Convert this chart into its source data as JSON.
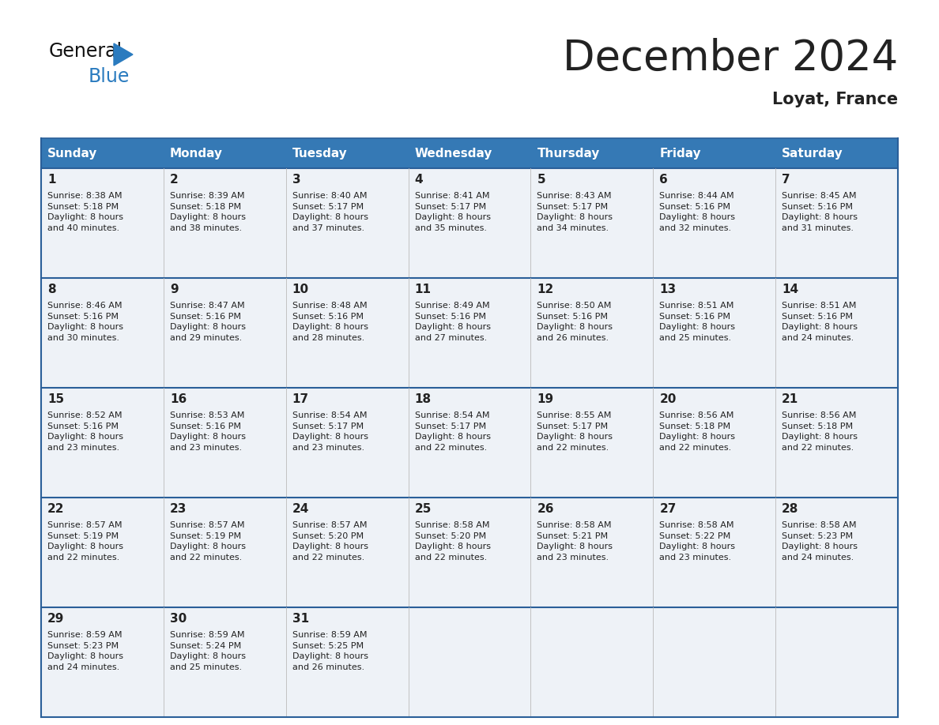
{
  "title": "December 2024",
  "subtitle": "Loyat, France",
  "header_bg": "#3579b5",
  "header_text_color": "#ffffff",
  "cell_bg_light": "#eef2f7",
  "border_color": "#2a5f99",
  "text_color": "#222222",
  "days_of_week": [
    "Sunday",
    "Monday",
    "Tuesday",
    "Wednesday",
    "Thursday",
    "Friday",
    "Saturday"
  ],
  "calendar": [
    [
      {
        "day": 1,
        "sunrise": "8:38 AM",
        "sunset": "5:18 PM",
        "daylight": "8 hours\nand 40 minutes."
      },
      {
        "day": 2,
        "sunrise": "8:39 AM",
        "sunset": "5:18 PM",
        "daylight": "8 hours\nand 38 minutes."
      },
      {
        "day": 3,
        "sunrise": "8:40 AM",
        "sunset": "5:17 PM",
        "daylight": "8 hours\nand 37 minutes."
      },
      {
        "day": 4,
        "sunrise": "8:41 AM",
        "sunset": "5:17 PM",
        "daylight": "8 hours\nand 35 minutes."
      },
      {
        "day": 5,
        "sunrise": "8:43 AM",
        "sunset": "5:17 PM",
        "daylight": "8 hours\nand 34 minutes."
      },
      {
        "day": 6,
        "sunrise": "8:44 AM",
        "sunset": "5:16 PM",
        "daylight": "8 hours\nand 32 minutes."
      },
      {
        "day": 7,
        "sunrise": "8:45 AM",
        "sunset": "5:16 PM",
        "daylight": "8 hours\nand 31 minutes."
      }
    ],
    [
      {
        "day": 8,
        "sunrise": "8:46 AM",
        "sunset": "5:16 PM",
        "daylight": "8 hours\nand 30 minutes."
      },
      {
        "day": 9,
        "sunrise": "8:47 AM",
        "sunset": "5:16 PM",
        "daylight": "8 hours\nand 29 minutes."
      },
      {
        "day": 10,
        "sunrise": "8:48 AM",
        "sunset": "5:16 PM",
        "daylight": "8 hours\nand 28 minutes."
      },
      {
        "day": 11,
        "sunrise": "8:49 AM",
        "sunset": "5:16 PM",
        "daylight": "8 hours\nand 27 minutes."
      },
      {
        "day": 12,
        "sunrise": "8:50 AM",
        "sunset": "5:16 PM",
        "daylight": "8 hours\nand 26 minutes."
      },
      {
        "day": 13,
        "sunrise": "8:51 AM",
        "sunset": "5:16 PM",
        "daylight": "8 hours\nand 25 minutes."
      },
      {
        "day": 14,
        "sunrise": "8:51 AM",
        "sunset": "5:16 PM",
        "daylight": "8 hours\nand 24 minutes."
      }
    ],
    [
      {
        "day": 15,
        "sunrise": "8:52 AM",
        "sunset": "5:16 PM",
        "daylight": "8 hours\nand 23 minutes."
      },
      {
        "day": 16,
        "sunrise": "8:53 AM",
        "sunset": "5:16 PM",
        "daylight": "8 hours\nand 23 minutes."
      },
      {
        "day": 17,
        "sunrise": "8:54 AM",
        "sunset": "5:17 PM",
        "daylight": "8 hours\nand 23 minutes."
      },
      {
        "day": 18,
        "sunrise": "8:54 AM",
        "sunset": "5:17 PM",
        "daylight": "8 hours\nand 22 minutes."
      },
      {
        "day": 19,
        "sunrise": "8:55 AM",
        "sunset": "5:17 PM",
        "daylight": "8 hours\nand 22 minutes."
      },
      {
        "day": 20,
        "sunrise": "8:56 AM",
        "sunset": "5:18 PM",
        "daylight": "8 hours\nand 22 minutes."
      },
      {
        "day": 21,
        "sunrise": "8:56 AM",
        "sunset": "5:18 PM",
        "daylight": "8 hours\nand 22 minutes."
      }
    ],
    [
      {
        "day": 22,
        "sunrise": "8:57 AM",
        "sunset": "5:19 PM",
        "daylight": "8 hours\nand 22 minutes."
      },
      {
        "day": 23,
        "sunrise": "8:57 AM",
        "sunset": "5:19 PM",
        "daylight": "8 hours\nand 22 minutes."
      },
      {
        "day": 24,
        "sunrise": "8:57 AM",
        "sunset": "5:20 PM",
        "daylight": "8 hours\nand 22 minutes."
      },
      {
        "day": 25,
        "sunrise": "8:58 AM",
        "sunset": "5:20 PM",
        "daylight": "8 hours\nand 22 minutes."
      },
      {
        "day": 26,
        "sunrise": "8:58 AM",
        "sunset": "5:21 PM",
        "daylight": "8 hours\nand 23 minutes."
      },
      {
        "day": 27,
        "sunrise": "8:58 AM",
        "sunset": "5:22 PM",
        "daylight": "8 hours\nand 23 minutes."
      },
      {
        "day": 28,
        "sunrise": "8:58 AM",
        "sunset": "5:23 PM",
        "daylight": "8 hours\nand 24 minutes."
      }
    ],
    [
      {
        "day": 29,
        "sunrise": "8:59 AM",
        "sunset": "5:23 PM",
        "daylight": "8 hours\nand 24 minutes."
      },
      {
        "day": 30,
        "sunrise": "8:59 AM",
        "sunset": "5:24 PM",
        "daylight": "8 hours\nand 25 minutes."
      },
      {
        "day": 31,
        "sunrise": "8:59 AM",
        "sunset": "5:25 PM",
        "daylight": "8 hours\nand 26 minutes."
      },
      null,
      null,
      null,
      null
    ]
  ],
  "logo_color_general": "#111111",
  "logo_color_blue": "#2a7bbf",
  "logo_triangle_color": "#2a7bbf"
}
